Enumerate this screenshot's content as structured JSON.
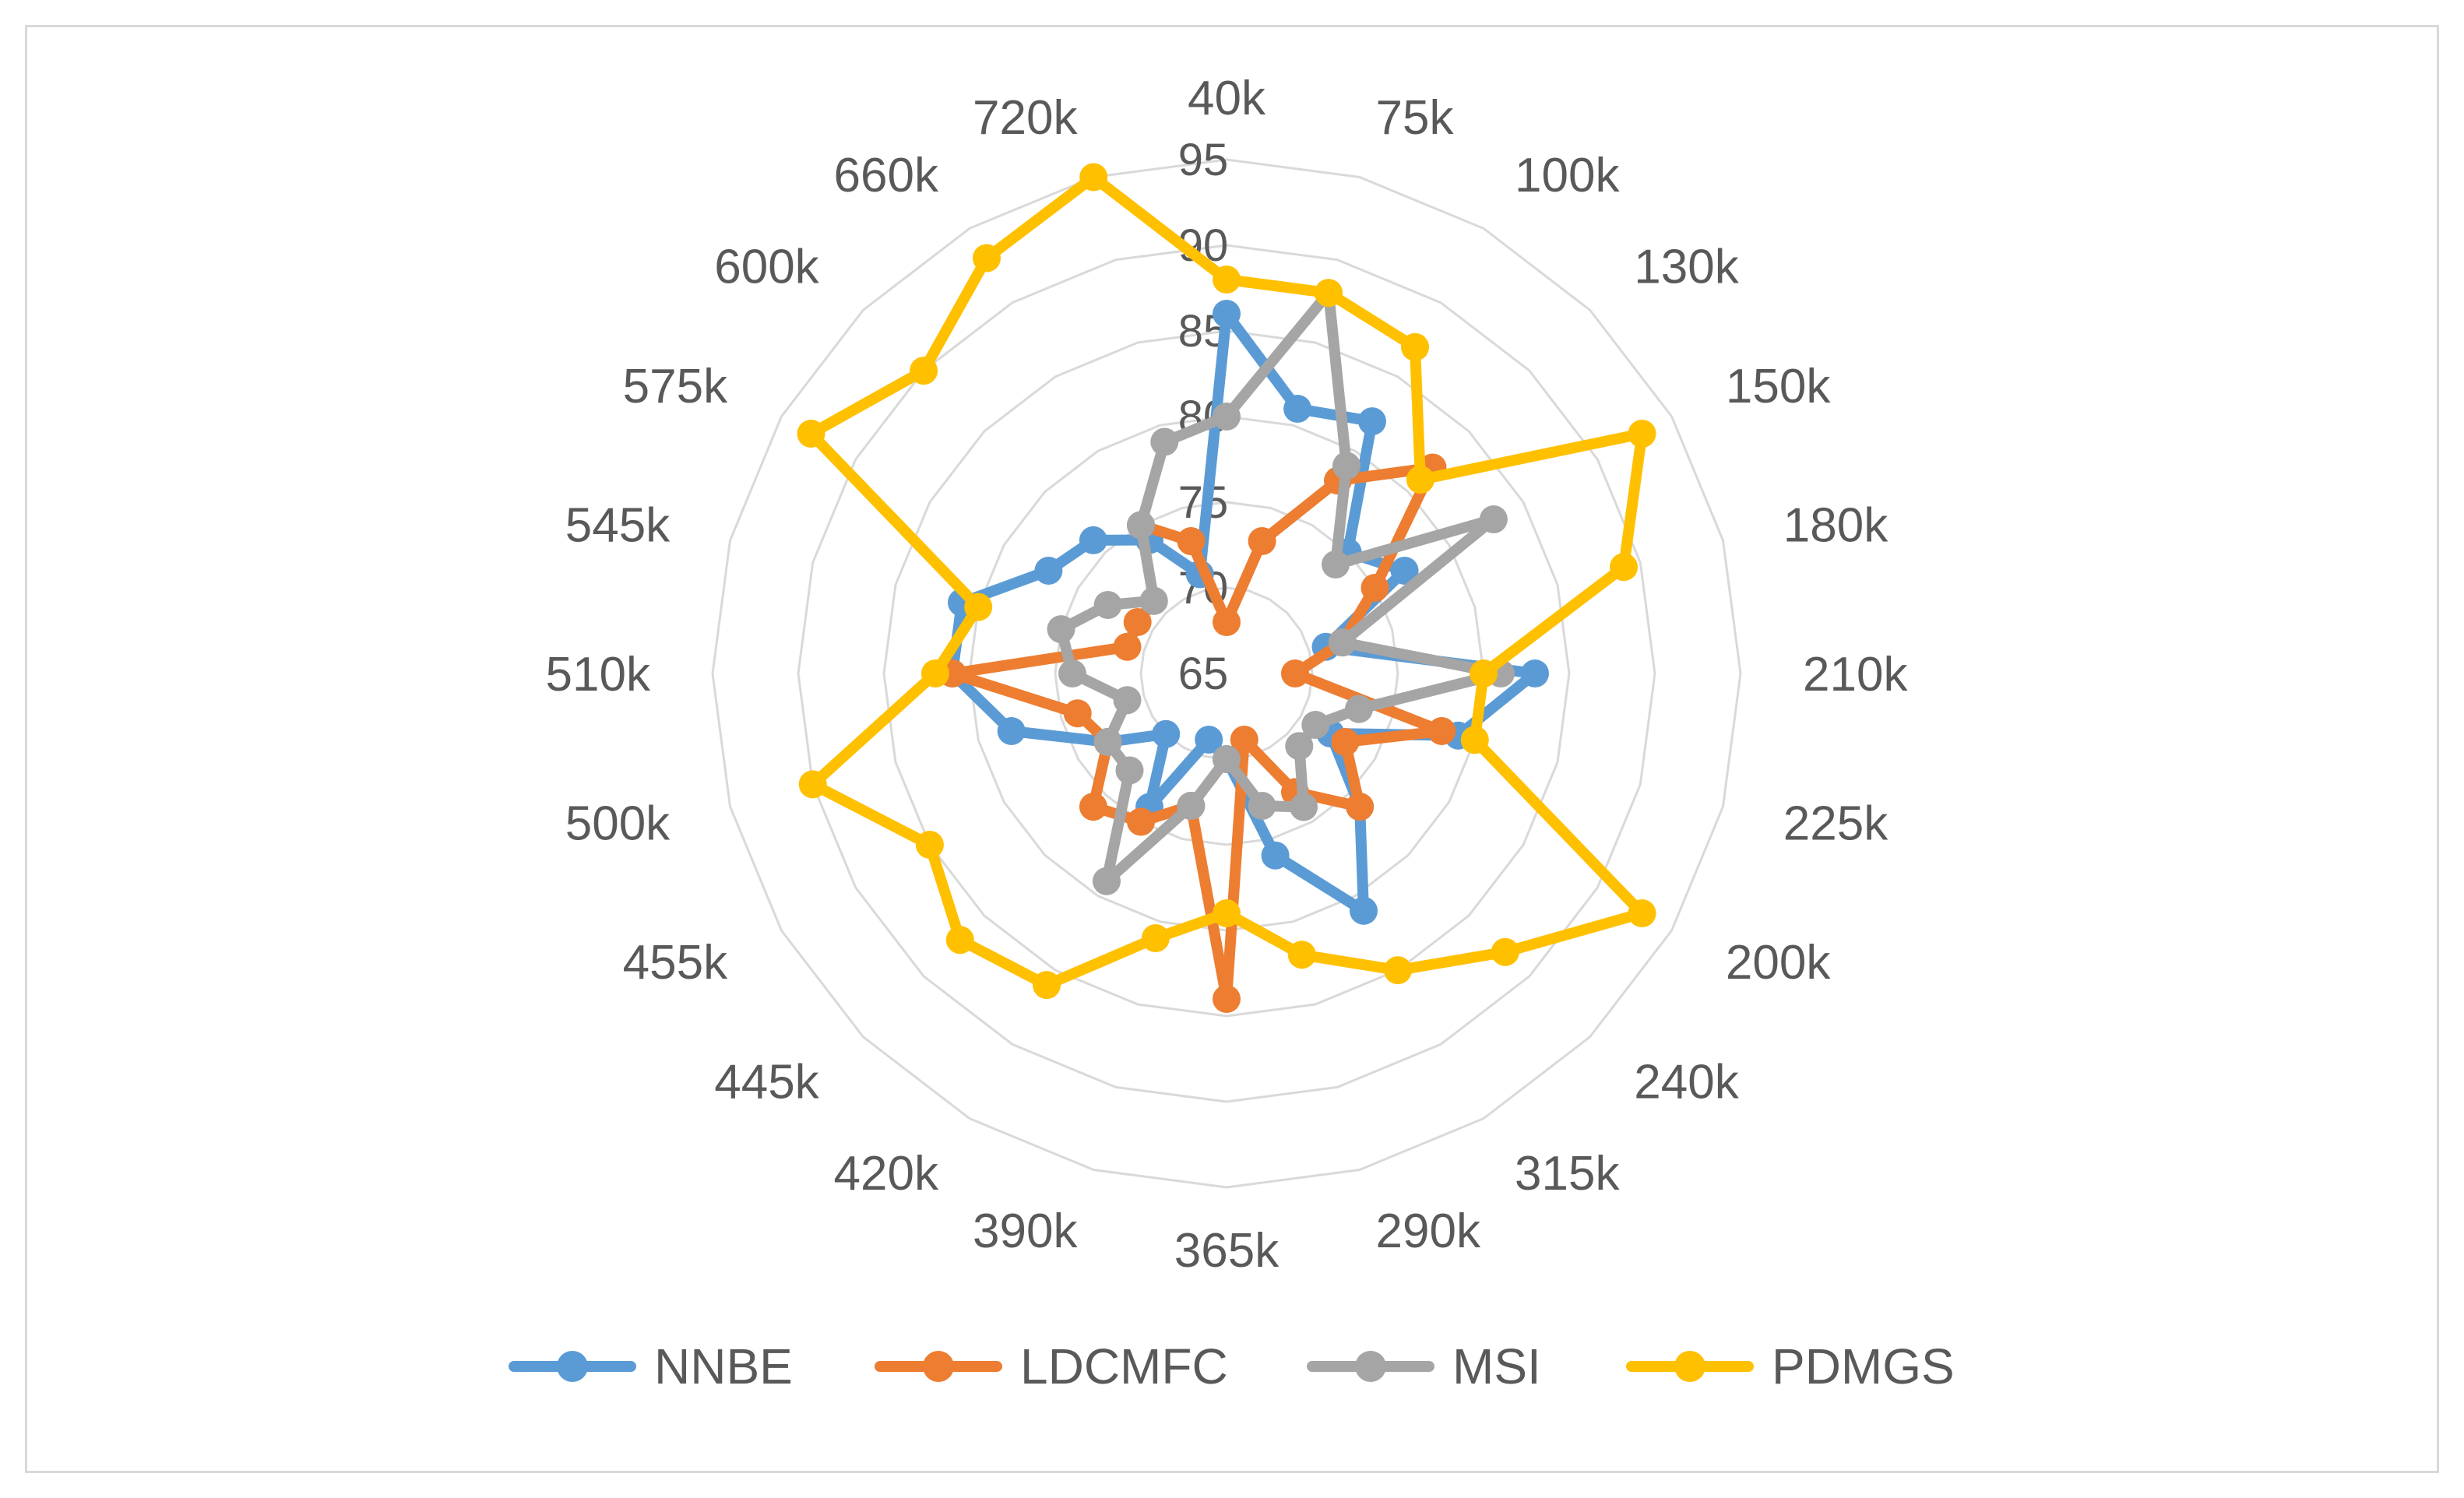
{
  "chart_data": {
    "type": "radar",
    "title": "",
    "categories": [
      "40k",
      "75k",
      "100k",
      "130k",
      "150k",
      "180k",
      "210k",
      "225k",
      "200k",
      "240k",
      "315k",
      "290k",
      "365k",
      "390k",
      "420k",
      "445k",
      "455k",
      "500k",
      "510k",
      "545k",
      "575k",
      "600k",
      "660k",
      "720k"
    ],
    "rlim": [
      65,
      95
    ],
    "ticks": [
      65,
      70,
      75,
      80,
      85,
      90,
      95
    ],
    "grid": true,
    "legend_position": "bottom",
    "series": [
      {
        "name": "NNBE",
        "color": "#5b9bd5",
        "values": [
          86,
          81,
          82,
          75,
          77,
          71,
          83,
          79,
          72,
          76,
          81,
          76,
          70,
          69,
          74,
          70,
          73,
          78,
          81,
          81,
          77,
          76,
          74,
          71
        ]
      },
      {
        "name": "LDCMFC",
        "color": "#ed7d31",
        "values": [
          68,
          73,
          78,
          82,
          75,
          72,
          69,
          78,
          73,
          76,
          73,
          69,
          84,
          73,
          75,
          76,
          73,
          74,
          81,
          71,
          71,
          71,
          75,
          73
        ]
      },
      {
        "name": "MSI",
        "color": "#a5a5a5",
        "values": [
          80,
          88,
          79,
          74,
          83,
          72,
          81,
          73,
          71,
          71,
          74,
          73,
          70,
          73,
          79,
          73,
          73,
          71,
          74,
          75,
          73,
          71,
          75,
          79
        ]
      },
      {
        "name": "PDMGS",
        "color": "#ffc000",
        "values": [
          88,
          88,
          87,
          81,
          93,
          89,
          80,
          80,
          93,
          88,
          85,
          82,
          79,
          81,
          86,
          87,
          85,
          90,
          82,
          80,
          93,
          90,
          93,
          95
        ]
      }
    ]
  }
}
